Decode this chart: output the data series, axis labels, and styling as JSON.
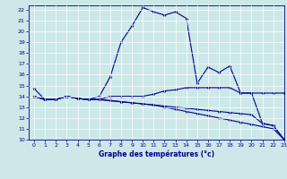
{
  "title": "Graphe des températures (°c)",
  "xlim": [
    -0.5,
    23
  ],
  "ylim": [
    10,
    22.4
  ],
  "yticks": [
    10,
    11,
    12,
    13,
    14,
    15,
    16,
    17,
    18,
    19,
    20,
    21,
    22
  ],
  "xticks": [
    0,
    1,
    2,
    3,
    4,
    5,
    6,
    7,
    8,
    9,
    10,
    11,
    12,
    13,
    14,
    15,
    16,
    17,
    18,
    19,
    20,
    21,
    22,
    23
  ],
  "bg_color": "#cce8e8",
  "line_color": "#00008b",
  "series": [
    [
      14.7,
      13.7,
      13.7,
      14.0,
      13.8,
      13.7,
      14.0,
      15.8,
      19.0,
      20.5,
      22.2,
      21.8,
      21.5,
      21.8,
      21.2,
      15.2,
      16.7,
      16.2,
      16.8,
      14.3,
      14.3,
      11.5,
      11.3,
      10.0
    ],
    [
      14.0,
      13.7,
      13.7,
      14.0,
      13.8,
      13.7,
      13.7,
      14.0,
      14.0,
      14.0,
      14.0,
      14.2,
      14.5,
      14.6,
      14.8,
      14.8,
      14.8,
      14.8,
      14.8,
      14.3,
      14.3,
      14.3,
      14.3,
      14.3
    ],
    [
      14.0,
      13.7,
      13.7,
      14.0,
      13.8,
      13.7,
      13.7,
      13.6,
      13.5,
      13.4,
      13.3,
      13.2,
      13.1,
      13.0,
      12.9,
      12.8,
      12.7,
      12.6,
      12.5,
      12.4,
      12.3,
      11.5,
      11.3,
      10.0
    ],
    [
      14.0,
      13.7,
      13.7,
      14.0,
      13.8,
      13.7,
      13.7,
      13.6,
      13.5,
      13.4,
      13.3,
      13.2,
      13.0,
      12.8,
      12.6,
      12.4,
      12.2,
      12.0,
      11.8,
      11.6,
      11.4,
      11.2,
      11.0,
      10.0
    ]
  ]
}
